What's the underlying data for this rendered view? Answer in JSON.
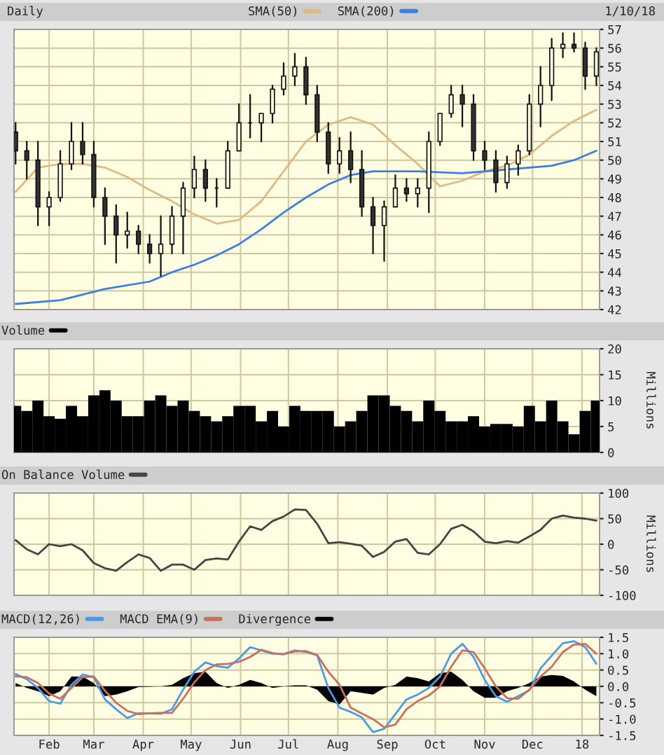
{
  "chart_data": [
    {
      "type": "candlestick",
      "title": "Daily",
      "annotations": [
        "1/10/18"
      ],
      "legend": "top",
      "grid": true,
      "tick_labels": "y",
      "x": [
        "2017-01-11",
        "2017-01-18",
        "2017-01-25",
        "2017-02-01",
        "2017-02-08",
        "2017-02-15",
        "2017-02-22",
        "2017-03-01",
        "2017-03-08",
        "2017-03-15",
        "2017-03-22",
        "2017-03-29",
        "2017-04-05",
        "2017-04-12",
        "2017-04-19",
        "2017-04-26",
        "2017-05-03",
        "2017-05-10",
        "2017-05-17",
        "2017-05-24",
        "2017-05-31",
        "2017-06-07",
        "2017-06-14",
        "2017-06-21",
        "2017-06-28",
        "2017-07-05",
        "2017-07-12",
        "2017-07-19",
        "2017-07-26",
        "2017-08-02",
        "2017-08-09",
        "2017-08-16",
        "2017-08-23",
        "2017-08-30",
        "2017-09-06",
        "2017-09-13",
        "2017-09-20",
        "2017-09-27",
        "2017-10-04",
        "2017-10-11",
        "2017-10-18",
        "2017-10-25",
        "2017-11-01",
        "2017-11-08",
        "2017-11-15",
        "2017-11-22",
        "2017-11-29",
        "2017-12-06",
        "2017-12-13",
        "2017-12-20",
        "2017-12-27",
        "2018-01-03",
        "2018-01-10"
      ],
      "ohlc": [
        [
          51.5,
          52,
          49.8,
          50.5
        ],
        [
          50.5,
          51,
          49,
          50
        ],
        [
          50,
          51,
          46.5,
          47.5
        ],
        [
          47.5,
          48.3,
          46.5,
          48
        ],
        [
          48,
          50.5,
          47.8,
          49.8
        ],
        [
          49.8,
          52,
          49.5,
          51
        ],
        [
          51,
          52,
          49.8,
          50.3
        ],
        [
          50.3,
          51,
          47.5,
          48
        ],
        [
          48,
          48.5,
          45.5,
          47
        ],
        [
          47,
          47.6,
          44.5,
          46
        ],
        [
          46,
          47.2,
          45.3,
          46.2
        ],
        [
          46.2,
          46.5,
          45,
          45.5
        ],
        [
          45.5,
          46,
          44.5,
          45
        ],
        [
          45,
          47,
          43.8,
          45.5
        ],
        [
          45.5,
          47.5,
          45,
          47
        ],
        [
          47,
          48.8,
          45,
          48.5
        ],
        [
          48.5,
          50.2,
          48,
          49.5
        ],
        [
          49.5,
          50,
          47.8,
          48.5
        ],
        [
          48.5,
          49,
          47.5,
          48.5
        ],
        [
          48.5,
          51,
          48.5,
          50.5
        ],
        [
          50.5,
          53,
          50.5,
          52
        ],
        [
          52,
          53.5,
          51.2,
          52
        ],
        [
          52,
          52.5,
          51,
          52.5
        ],
        [
          52.5,
          54,
          52,
          53.8
        ],
        [
          53.8,
          55.2,
          53.5,
          54.5
        ],
        [
          54.5,
          55.7,
          54,
          55
        ],
        [
          55,
          55.5,
          53,
          53.5
        ],
        [
          53.5,
          54,
          51,
          51.5
        ],
        [
          51.5,
          52,
          49.3,
          49.8
        ],
        [
          49.8,
          51.2,
          49.3,
          50.5
        ],
        [
          50.5,
          51.5,
          48.8,
          49.5
        ],
        [
          49.5,
          50.5,
          47,
          47.5
        ],
        [
          47.5,
          48,
          45,
          46.5
        ],
        [
          46.5,
          47.8,
          44.6,
          47.5
        ],
        [
          47.5,
          49.2,
          47.5,
          48.5
        ],
        [
          48.5,
          49,
          47.8,
          48.2
        ],
        [
          48.2,
          49,
          47.5,
          48.5
        ],
        [
          48.5,
          51.5,
          47.2,
          51
        ],
        [
          51,
          52.5,
          50.8,
          52.5
        ],
        [
          52.5,
          54,
          52.3,
          53.5
        ],
        [
          53.5,
          54,
          51.8,
          53
        ],
        [
          53,
          53.5,
          50,
          50.5
        ],
        [
          50.5,
          51,
          49.5,
          50
        ],
        [
          50,
          50.5,
          48.3,
          48.8
        ],
        [
          48.8,
          50.2,
          48.5,
          49.8
        ],
        [
          49.8,
          50.8,
          49.2,
          50.5
        ],
        [
          50.5,
          53.5,
          50.3,
          53
        ],
        [
          53,
          55,
          51.8,
          54
        ],
        [
          54,
          56.5,
          53.2,
          56
        ],
        [
          56,
          56.8,
          55.5,
          56.2
        ],
        [
          56.2,
          56.8,
          55.8,
          56
        ],
        [
          56,
          56.3,
          53.8,
          54.5
        ],
        [
          54.5,
          56,
          54,
          55.8
        ]
      ],
      "series": [
        {
          "name": "SMA(50)",
          "color": "#e0b882",
          "type": "line",
          "x": [
            "2017-01-11",
            "2017-01-25",
            "2017-02-08",
            "2017-02-22",
            "2017-03-08",
            "2017-03-22",
            "2017-04-05",
            "2017-04-19",
            "2017-05-03",
            "2017-05-17",
            "2017-05-31",
            "2017-06-14",
            "2017-06-28",
            "2017-07-12",
            "2017-07-26",
            "2017-08-09",
            "2017-08-23",
            "2017-09-06",
            "2017-09-20",
            "2017-10-04",
            "2017-10-18",
            "2017-11-01",
            "2017-11-15",
            "2017-11-29",
            "2017-12-13",
            "2017-12-27",
            "2018-01-10"
          ],
          "values": [
            48.3,
            49.6,
            49.8,
            49.8,
            49.6,
            49.1,
            48.4,
            47.8,
            47.1,
            46.6,
            46.8,
            47.8,
            49.4,
            51,
            51.9,
            52.3,
            51.9,
            50.8,
            49.8,
            48.6,
            48.9,
            49.4,
            49.7,
            50.3,
            51.3,
            52.1,
            52.7
          ]
        },
        {
          "name": "SMA(200)",
          "color": "#3d7fe0",
          "type": "line",
          "x": [
            "2017-01-11",
            "2017-02-08",
            "2017-03-08",
            "2017-04-05",
            "2017-04-19",
            "2017-05-03",
            "2017-05-17",
            "2017-05-31",
            "2017-06-14",
            "2017-06-28",
            "2017-07-12",
            "2017-07-26",
            "2017-08-09",
            "2017-08-23",
            "2017-09-20",
            "2017-10-18",
            "2017-11-15",
            "2017-12-13",
            "2017-12-27",
            "2018-01-10"
          ],
          "values": [
            42.3,
            42.5,
            43.1,
            43.5,
            44,
            44.4,
            44.9,
            45.5,
            46.3,
            47.2,
            48,
            48.7,
            49.2,
            49.4,
            49.4,
            49.3,
            49.5,
            49.7,
            50,
            50.5
          ]
        }
      ],
      "xlim": [
        "2017-01-10",
        "2018-01-12"
      ],
      "xticks": [
        {
          "value": "2017-02-01",
          "label": null
        },
        {
          "value": "2017-03-01",
          "label": null
        },
        {
          "value": "2017-04-01",
          "label": null
        },
        {
          "value": "2017-05-01",
          "label": null
        },
        {
          "value": "2017-06-01",
          "label": null
        },
        {
          "value": "2017-07-01",
          "label": null
        },
        {
          "value": "2017-08-01",
          "label": null
        },
        {
          "value": "2017-09-01",
          "label": null
        },
        {
          "value": "2017-10-01",
          "label": null
        },
        {
          "value": "2017-11-01",
          "label": null
        },
        {
          "value": "2017-12-01",
          "label": null
        },
        {
          "value": "2018-01-01",
          "label": null
        }
      ],
      "ylim": [
        42,
        57
      ],
      "yticks": [
        42,
        43,
        44,
        45,
        46,
        47,
        48,
        49,
        50,
        51,
        52,
        53,
        54,
        55,
        56,
        57
      ]
    },
    {
      "type": "bar",
      "ylabel": "Millions",
      "legend": "top left",
      "grid": true,
      "tick_labels": "y",
      "x": [
        "2017-01-11",
        "2017-01-18",
        "2017-01-25",
        "2017-02-01",
        "2017-02-08",
        "2017-02-15",
        "2017-02-22",
        "2017-03-01",
        "2017-03-08",
        "2017-03-15",
        "2017-03-22",
        "2017-03-29",
        "2017-04-05",
        "2017-04-12",
        "2017-04-19",
        "2017-04-26",
        "2017-05-03",
        "2017-05-10",
        "2017-05-17",
        "2017-05-24",
        "2017-05-31",
        "2017-06-07",
        "2017-06-14",
        "2017-06-21",
        "2017-06-28",
        "2017-07-05",
        "2017-07-12",
        "2017-07-19",
        "2017-07-26",
        "2017-08-02",
        "2017-08-09",
        "2017-08-16",
        "2017-08-23",
        "2017-08-30",
        "2017-09-06",
        "2017-09-13",
        "2017-09-20",
        "2017-09-27",
        "2017-10-04",
        "2017-10-11",
        "2017-10-18",
        "2017-10-25",
        "2017-11-01",
        "2017-11-08",
        "2017-11-15",
        "2017-11-22",
        "2017-11-29",
        "2017-12-06",
        "2017-12-13",
        "2017-12-20",
        "2017-12-27",
        "2018-01-03",
        "2018-01-10"
      ],
      "series": [
        {
          "name": "Volume",
          "color": "#000000",
          "values": [
            9,
            8,
            10,
            7,
            6.5,
            9,
            7,
            11,
            12,
            10,
            7,
            7,
            10,
            11,
            9,
            10,
            8,
            7,
            6,
            7,
            9,
            9,
            6,
            8,
            5,
            9,
            8,
            8,
            8,
            5,
            6,
            8,
            11,
            11,
            9,
            8,
            6,
            10,
            8,
            6,
            6,
            7,
            5,
            5.5,
            5.5,
            5,
            9,
            6,
            10,
            6,
            3.5,
            8,
            10
          ]
        }
      ],
      "xlim": [
        "2017-01-10",
        "2018-01-12"
      ],
      "xticks": [
        {
          "value": "2017-02-01",
          "label": null
        },
        {
          "value": "2017-03-01",
          "label": null
        },
        {
          "value": "2017-04-01",
          "label": null
        },
        {
          "value": "2017-05-01",
          "label": null
        },
        {
          "value": "2017-06-01",
          "label": null
        },
        {
          "value": "2017-07-01",
          "label": null
        },
        {
          "value": "2017-08-01",
          "label": null
        },
        {
          "value": "2017-09-01",
          "label": null
        },
        {
          "value": "2017-10-01",
          "label": null
        },
        {
          "value": "2017-11-01",
          "label": null
        },
        {
          "value": "2017-12-01",
          "label": null
        },
        {
          "value": "2018-01-01",
          "label": null
        }
      ],
      "ylim": [
        0,
        20
      ],
      "yticks": [
        0,
        5,
        10,
        15,
        20
      ]
    },
    {
      "type": "line",
      "ylabel": "Millions",
      "legend": "top left",
      "grid": true,
      "tick_labels": "y",
      "x": [
        "2017-01-11",
        "2017-01-18",
        "2017-01-25",
        "2017-02-01",
        "2017-02-08",
        "2017-02-15",
        "2017-02-22",
        "2017-03-01",
        "2017-03-08",
        "2017-03-15",
        "2017-03-22",
        "2017-03-29",
        "2017-04-05",
        "2017-04-12",
        "2017-04-19",
        "2017-04-26",
        "2017-05-03",
        "2017-05-10",
        "2017-05-17",
        "2017-05-24",
        "2017-05-31",
        "2017-06-07",
        "2017-06-14",
        "2017-06-21",
        "2017-06-28",
        "2017-07-05",
        "2017-07-12",
        "2017-07-19",
        "2017-07-26",
        "2017-08-02",
        "2017-08-09",
        "2017-08-16",
        "2017-08-23",
        "2017-08-30",
        "2017-09-06",
        "2017-09-13",
        "2017-09-20",
        "2017-09-27",
        "2017-10-04",
        "2017-10-11",
        "2017-10-18",
        "2017-10-25",
        "2017-11-01",
        "2017-11-08",
        "2017-11-15",
        "2017-11-22",
        "2017-11-29",
        "2017-12-06",
        "2017-12-13",
        "2017-12-20",
        "2017-12-27",
        "2018-01-03",
        "2018-01-10"
      ],
      "series": [
        {
          "name": "On Balance Volume",
          "color": "#444444",
          "values": [
            8,
            -10,
            -20,
            0,
            -4,
            0,
            -12,
            -37,
            -47,
            -52,
            -35,
            -20,
            -27,
            -52,
            -40,
            -40,
            -50,
            -31,
            -28,
            -30,
            5,
            35,
            28,
            45,
            54,
            68,
            67,
            40,
            2,
            4,
            1,
            -3,
            -25,
            -15,
            5,
            10,
            -17,
            -20,
            0,
            30,
            38,
            25,
            5,
            2,
            6,
            3,
            15,
            28,
            50,
            56,
            52,
            50,
            46
          ]
        }
      ],
      "xlim": [
        "2017-01-10",
        "2018-01-12"
      ],
      "xticks": [
        {
          "value": "2017-02-01",
          "label": null
        },
        {
          "value": "2017-03-01",
          "label": null
        },
        {
          "value": "2017-04-01",
          "label": null
        },
        {
          "value": "2017-05-01",
          "label": null
        },
        {
          "value": "2017-06-01",
          "label": null
        },
        {
          "value": "2017-07-01",
          "label": null
        },
        {
          "value": "2017-08-01",
          "label": null
        },
        {
          "value": "2017-09-01",
          "label": null
        },
        {
          "value": "2017-10-01",
          "label": null
        },
        {
          "value": "2017-11-01",
          "label": null
        },
        {
          "value": "2017-12-01",
          "label": null
        },
        {
          "value": "2018-01-01",
          "label": null
        }
      ],
      "ylim": [
        -100,
        100
      ],
      "yticks": [
        -100,
        -50,
        0,
        50,
        100
      ]
    },
    {
      "type": "line",
      "legend": "top left",
      "grid": true,
      "x": [
        "2017-01-11",
        "2017-01-18",
        "2017-01-25",
        "2017-02-01",
        "2017-02-08",
        "2017-02-15",
        "2017-02-22",
        "2017-03-01",
        "2017-03-08",
        "2017-03-15",
        "2017-03-22",
        "2017-03-29",
        "2017-04-05",
        "2017-04-12",
        "2017-04-19",
        "2017-04-26",
        "2017-05-03",
        "2017-05-10",
        "2017-05-17",
        "2017-05-24",
        "2017-05-31",
        "2017-06-07",
        "2017-06-14",
        "2017-06-21",
        "2017-06-28",
        "2017-07-05",
        "2017-07-12",
        "2017-07-19",
        "2017-07-26",
        "2017-08-02",
        "2017-08-09",
        "2017-08-16",
        "2017-08-23",
        "2017-08-30",
        "2017-09-06",
        "2017-09-13",
        "2017-09-20",
        "2017-09-27",
        "2017-10-04",
        "2017-10-11",
        "2017-10-18",
        "2017-10-25",
        "2017-11-01",
        "2017-11-08",
        "2017-11-15",
        "2017-11-22",
        "2017-11-29",
        "2017-12-06",
        "2017-12-13",
        "2017-12-20",
        "2017-12-27",
        "2018-01-03",
        "2018-01-10"
      ],
      "series": [
        {
          "name": "MACD(12,26)",
          "color": "#4a9ae8",
          "values": [
            0.38,
            0.22,
            -0.05,
            -0.45,
            -0.53,
            0.05,
            0.36,
            0.28,
            -0.4,
            -0.7,
            -0.97,
            -0.82,
            -0.83,
            -0.84,
            -0.7,
            -0.1,
            0.45,
            0.73,
            0.62,
            0.57,
            0.85,
            1.2,
            1.1,
            1.0,
            0.99,
            1.1,
            1.05,
            0.95,
            -0.05,
            -0.65,
            -0.78,
            -0.95,
            -1.4,
            -1.3,
            -0.85,
            -0.4,
            -0.25,
            -0.05,
            0.3,
            1.0,
            1.3,
            0.9,
            0.2,
            -0.3,
            -0.47,
            -0.3,
            -0.12,
            0.55,
            0.94,
            1.32,
            1.38,
            1.2,
            0.69
          ]
        },
        {
          "name": "MACD EMA(9)",
          "color": "#c8705a",
          "values": [
            0.31,
            0.28,
            0.1,
            -0.22,
            -0.38,
            -0.05,
            0.28,
            0.3,
            -0.13,
            -0.5,
            -0.75,
            -0.85,
            -0.82,
            -0.81,
            -0.81,
            -0.38,
            0.12,
            0.5,
            0.67,
            0.69,
            0.75,
            0.9,
            1.12,
            1.02,
            0.98,
            1.07,
            1.08,
            0.96,
            0.45,
            0.05,
            -0.65,
            -0.83,
            -1.0,
            -1.25,
            -1.17,
            -0.7,
            -0.45,
            -0.28,
            0.0,
            0.6,
            1.1,
            1.05,
            0.55,
            0.0,
            -0.36,
            -0.38,
            -0.1,
            0.3,
            0.6,
            1.05,
            1.28,
            1.3,
            1.0
          ]
        },
        {
          "name": "Divergence",
          "color": "#000000",
          "type": "area",
          "values": [
            0.1,
            -0.05,
            -0.15,
            -0.3,
            -0.15,
            0.3,
            0.3,
            0.1,
            -0.3,
            -0.25,
            -0.15,
            -0.02,
            -0.01,
            0.0,
            0.05,
            0.25,
            0.4,
            0.45,
            0.1,
            -0.05,
            0.05,
            0.2,
            0.1,
            -0.05,
            0.0,
            0.03,
            0.03,
            -0.1,
            -0.45,
            -0.55,
            -0.15,
            -0.2,
            -0.25,
            -0.05,
            0.05,
            0.3,
            0.25,
            0.15,
            0.4,
            0.45,
            0.2,
            -0.15,
            -0.35,
            -0.35,
            -0.15,
            -0.05,
            0.1,
            0.3,
            0.35,
            0.32,
            0.15,
            -0.1,
            -0.3
          ]
        }
      ],
      "xlim": [
        "2017-01-10",
        "2018-01-12"
      ],
      "xticks": [
        {
          "value": "2017-02-01",
          "label": "Feb"
        },
        {
          "value": "2017-03-01",
          "label": "Mar"
        },
        {
          "value": "2017-04-01",
          "label": "Apr"
        },
        {
          "value": "2017-05-01",
          "label": "May"
        },
        {
          "value": "2017-06-01",
          "label": "Jun"
        },
        {
          "value": "2017-07-01",
          "label": "Jul"
        },
        {
          "value": "2017-08-01",
          "label": "Aug"
        },
        {
          "value": "2017-09-01",
          "label": "Sep"
        },
        {
          "value": "2017-10-01",
          "label": "Oct"
        },
        {
          "value": "2017-11-01",
          "label": "Nov"
        },
        {
          "value": "2017-12-01",
          "label": "Dec"
        },
        {
          "value": "2018-01-01",
          "label": "18"
        }
      ],
      "ylim": [
        -1.5,
        1.5
      ],
      "yticks": [
        {
          "value": -1.5,
          "label": "-1.5"
        },
        {
          "value": -1.0,
          "label": "-1.0"
        },
        {
          "value": -0.5,
          "label": "-0.5"
        },
        {
          "value": 0.0,
          "label": "0.0"
        },
        {
          "value": 0.5,
          "label": "0.5"
        },
        {
          "value": 1.0,
          "label": "1.0"
        },
        {
          "value": 1.5,
          "label": "1.5"
        }
      ]
    }
  ]
}
